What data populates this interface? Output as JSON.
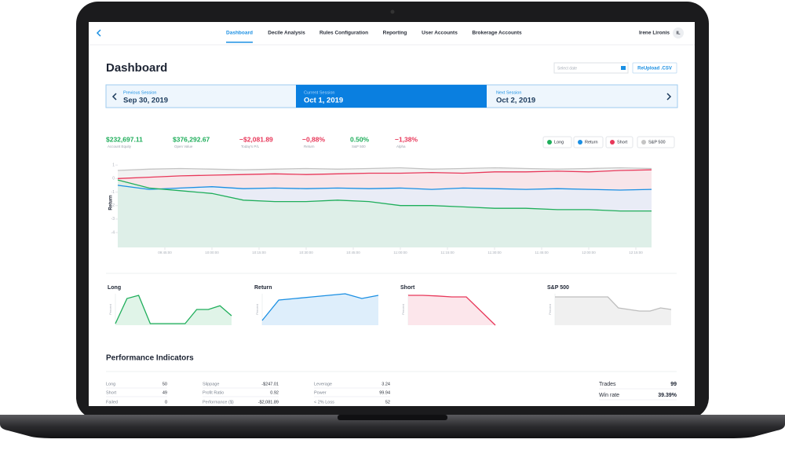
{
  "nav": {
    "items": [
      "Dashboard",
      "Decile Analysis",
      "Rules Configuration",
      "Reporting",
      "User Accounts",
      "Brokerage Accounts"
    ],
    "active": 0,
    "user": "Irene Lironis",
    "initials": "IL"
  },
  "header": {
    "title": "Dashboard",
    "date_placeholder": "Select date",
    "button": "ReUpload .CSV"
  },
  "sessions": [
    {
      "label": "Previous Session",
      "date": "Sep 30, 2019"
    },
    {
      "label": "Current Session",
      "date": "Oct 1, 2019"
    },
    {
      "label": "Next Session",
      "date": "Oct 2, 2019"
    }
  ],
  "metrics": [
    {
      "value": "$232,697.11",
      "label": "Account Equity",
      "color": "#1fae5b"
    },
    {
      "value": "$376,292.67",
      "label": "Open Value",
      "color": "#1fae5b"
    },
    {
      "value": "−$2,081.89",
      "label": "Today's P/L",
      "color": "#e8385a"
    },
    {
      "value": "−0,88%",
      "label": "Return",
      "color": "#e8385a"
    },
    {
      "value": "0.50%",
      "label": "S&P 500",
      "color": "#1fae5b"
    },
    {
      "value": "−1,38%",
      "label": "Alpha",
      "color": "#e8385a"
    }
  ],
  "chart_data": [
    {
      "type": "area",
      "y_label": "Return",
      "x": [
        "09:30:00",
        "09:40:00",
        "09:50:00",
        "10:00:00",
        "10:10:00",
        "10:20:00",
        "10:30:00",
        "10:40:00",
        "10:50:00",
        "11:00:00",
        "11:10:00",
        "11:20:00",
        "11:30:00",
        "11:40:00",
        "11:50:00",
        "12:00:00",
        "12:10:00",
        "12:20:00"
      ],
      "xlim": [
        "09:30:00",
        "12:27:30"
      ],
      "xticks": [
        "09:45:00",
        "10:00:00",
        "10:15:00",
        "10:30:00",
        "10:45:00",
        "11:00:00",
        "11:15:00",
        "11:30:00",
        "11:45:00",
        "12:00:00",
        "12:15:00"
      ],
      "ylim": [
        -5.1,
        1.3
      ],
      "yticks": [
        1,
        0,
        -1,
        -2,
        -3,
        -4
      ],
      "series": [
        {
          "name": "S&P 500",
          "color": "#c4c4c4",
          "fill": "#ececec",
          "values": [
            0.6,
            0.7,
            0.75,
            0.7,
            0.65,
            0.7,
            0.75,
            0.7,
            0.75,
            0.8,
            0.7,
            0.75,
            0.8,
            0.75,
            0.7,
            0.75,
            0.8,
            0.75
          ]
        },
        {
          "name": "Short",
          "color": "#e8385a",
          "fill": "#fbe0e6",
          "values": [
            0.0,
            0.1,
            0.2,
            0.25,
            0.3,
            0.35,
            0.3,
            0.35,
            0.4,
            0.4,
            0.45,
            0.4,
            0.5,
            0.5,
            0.55,
            0.5,
            0.6,
            0.65
          ]
        },
        {
          "name": "Return",
          "color": "#1a8fe3",
          "fill": "#e3f0fb",
          "values": [
            -0.5,
            -0.8,
            -0.7,
            -0.6,
            -0.75,
            -0.7,
            -0.75,
            -0.7,
            -0.75,
            -0.7,
            -0.8,
            -0.7,
            -0.75,
            -0.8,
            -0.75,
            -0.8,
            -0.85,
            -0.8
          ]
        },
        {
          "name": "Long",
          "color": "#1fae5b",
          "fill": "#d8f1e2",
          "values": [
            -0.1,
            -0.7,
            -0.9,
            -1.1,
            -1.6,
            -1.7,
            -1.7,
            -1.6,
            -1.7,
            -2.0,
            -2.0,
            -2.1,
            -2.2,
            -2.2,
            -2.3,
            -2.3,
            -2.4,
            -2.4
          ]
        }
      ]
    },
    {
      "type": "mini",
      "title": "Long",
      "y_label": "Percent",
      "color": "#1fae5b",
      "fill": "#d8f1e2",
      "ylim": [
        0,
        100
      ],
      "values": [
        5,
        85,
        95,
        5,
        5,
        5,
        5,
        50,
        50,
        62,
        30
      ]
    },
    {
      "type": "mini",
      "title": "Return",
      "y_label": "Percent",
      "color": "#1a8fe3",
      "fill": "#d6eafa",
      "ylim": [
        0,
        100
      ],
      "values": [
        15,
        80,
        85,
        90,
        95,
        100,
        85,
        95
      ]
    },
    {
      "type": "mini",
      "title": "Short",
      "y_label": "Percent",
      "color": "#e8385a",
      "fill": "#fbe0e6",
      "ylim": [
        0,
        100
      ],
      "values": [
        95,
        95,
        93,
        90,
        90,
        45,
        0,
        null,
        null
      ]
    },
    {
      "type": "mini",
      "title": "S&P 500",
      "y_label": "Percent",
      "color": "#bdbdbd",
      "fill": "#ececec",
      "ylim": [
        0,
        100
      ],
      "values": [
        90,
        90,
        90,
        90,
        90,
        90,
        55,
        50,
        45,
        45,
        55,
        50
      ]
    }
  ],
  "performance": {
    "title": "Performance Indicators",
    "columns": [
      [
        [
          "Long",
          "50"
        ],
        [
          "Short",
          "49"
        ],
        [
          "Failed",
          "0"
        ]
      ],
      [
        [
          "Slippage",
          "-$247.01"
        ],
        [
          "Profit Ratio",
          "0.92"
        ],
        [
          "Performance ($)",
          "-$2,081.89"
        ]
      ],
      [
        [
          "Leverage",
          "3.24"
        ],
        [
          "Power",
          "99.94"
        ],
        [
          "< 2% Loss",
          "52"
        ]
      ]
    ],
    "summary": [
      [
        "Trades",
        "99"
      ],
      [
        "Win rate",
        "39.39%"
      ]
    ]
  }
}
